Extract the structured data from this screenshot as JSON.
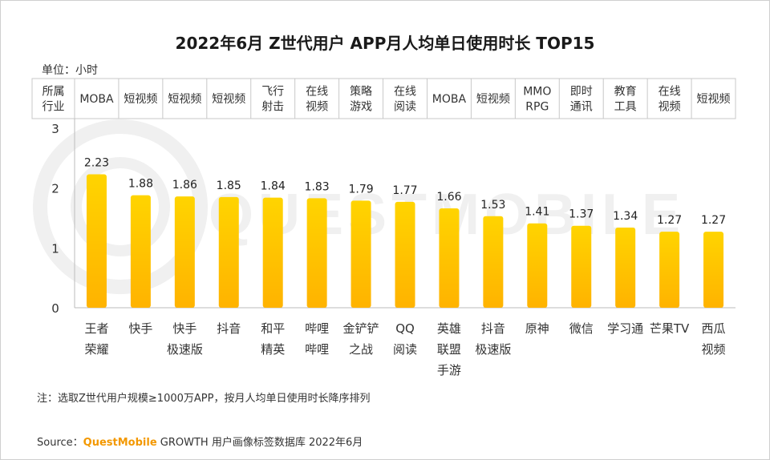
{
  "title": "2022年6月 Z世代用户 APP月人均单日使用时长 TOP15",
  "unit_label": "单位：小时",
  "header_label": [
    "所属",
    "行业"
  ],
  "note": "注：选取Z世代用户规模≥1000万APP，按月人均单日使用时长降序排列",
  "source": {
    "prefix": "Source：",
    "brand": "QuestMobile",
    "rest": " GROWTH 用户画像标签数据库 2022年6月"
  },
  "watermark": "QUESTMOBILE",
  "colors": {
    "bar_top": "#ffd400",
    "bar_bottom": "#ffb300",
    "grid": "#c8c8c8"
  },
  "chart_data": {
    "type": "bar",
    "title": "2022年6月 Z世代用户 APP月人均单日使用时长 TOP15",
    "ylabel": "单位：小时",
    "ylim": [
      0,
      3
    ],
    "yticks": [
      0,
      1,
      2,
      3
    ],
    "categories": [
      [
        "王者",
        "荣耀"
      ],
      [
        "快手"
      ],
      [
        "快手",
        "极速版"
      ],
      [
        "抖音"
      ],
      [
        "和平",
        "精英"
      ],
      [
        "哔哩",
        "哔哩"
      ],
      [
        "金铲铲",
        "之战"
      ],
      [
        "QQ",
        "阅读"
      ],
      [
        "英雄",
        "联盟",
        "手游"
      ],
      [
        "抖音",
        "极速版"
      ],
      [
        "原神"
      ],
      [
        "微信"
      ],
      [
        "学习通"
      ],
      [
        "芒果TV"
      ],
      [
        "西瓜",
        "视频"
      ]
    ],
    "industries": [
      [
        "MOBA"
      ],
      [
        "短视频"
      ],
      [
        "短视频"
      ],
      [
        "短视频"
      ],
      [
        "飞行",
        "射击"
      ],
      [
        "在线",
        "视频"
      ],
      [
        "策略",
        "游戏"
      ],
      [
        "在线",
        "阅读"
      ],
      [
        "MOBA"
      ],
      [
        "短视频"
      ],
      [
        "MMO",
        "RPG"
      ],
      [
        "即时",
        "通讯"
      ],
      [
        "教育",
        "工具"
      ],
      [
        "在线",
        "视频"
      ],
      [
        "短视频"
      ]
    ],
    "values": [
      2.23,
      1.88,
      1.86,
      1.85,
      1.84,
      1.83,
      1.79,
      1.77,
      1.66,
      1.53,
      1.41,
      1.37,
      1.34,
      1.27,
      1.27
    ]
  }
}
